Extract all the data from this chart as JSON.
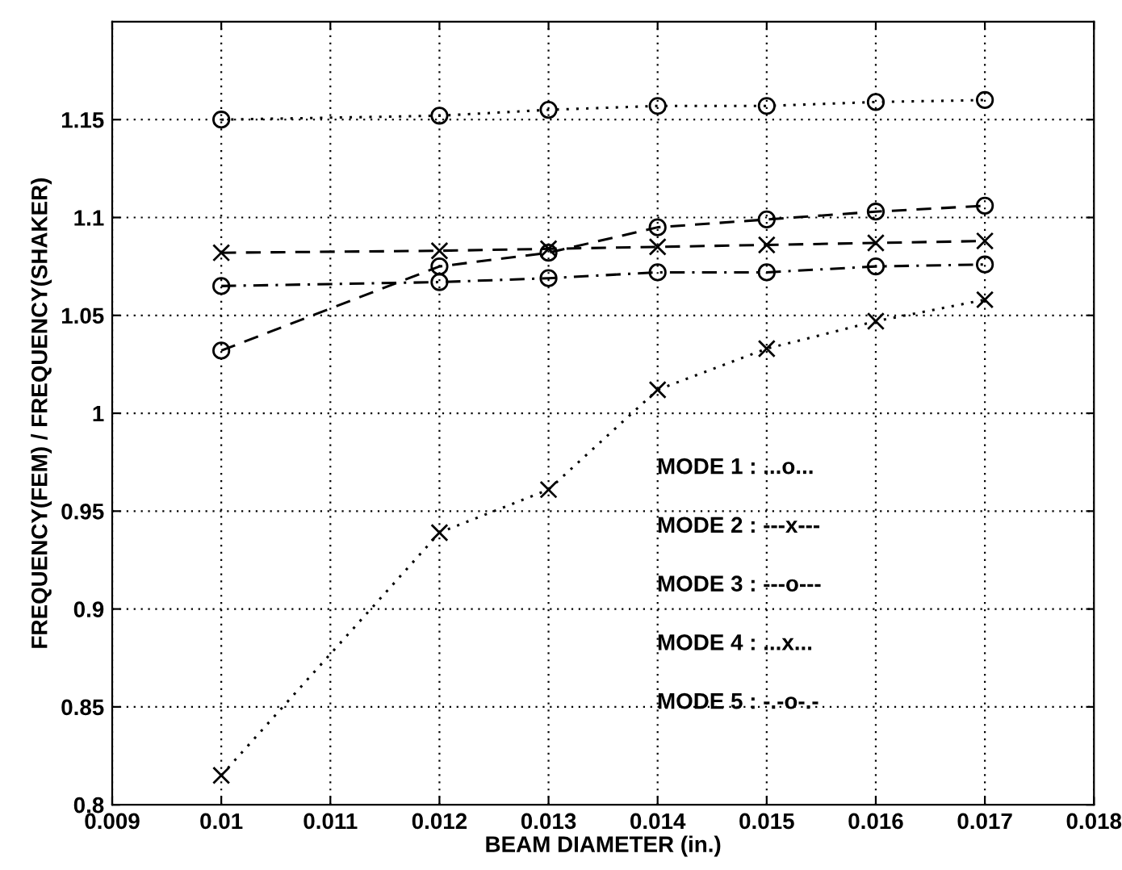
{
  "chart_data": {
    "type": "line",
    "xlabel": "BEAM DIAMETER (in.)",
    "ylabel": "FREQUENCY(FEM) / FREQUENCY(SHAKER)",
    "x": [
      0.01,
      0.012,
      0.013,
      0.014,
      0.015,
      0.016,
      0.017
    ],
    "series": [
      {
        "color": "#000000",
        "marker": "circle",
        "line_style": "dotted",
        "values": [
          1.15,
          1.152,
          1.155,
          1.157,
          1.157,
          1.159,
          1.16
        ]
      },
      {
        "color": "#000000",
        "marker": "cross",
        "line_style": "dashed",
        "values": [
          1.082,
          1.083,
          1.084,
          1.085,
          1.086,
          1.087,
          1.088
        ]
      },
      {
        "color": "#000000",
        "marker": "circle",
        "line_style": "dashed",
        "values": [
          1.032,
          1.075,
          1.082,
          1.095,
          1.099,
          1.103,
          1.106
        ]
      },
      {
        "color": "#000000",
        "marker": "cross",
        "line_style": "dotted",
        "values": [
          0.815,
          0.939,
          0.961,
          1.012,
          1.033,
          1.047,
          1.058
        ]
      },
      {
        "color": "#000000",
        "marker": "circle",
        "line_style": "dashdot",
        "values": [
          1.065,
          1.067,
          1.069,
          1.072,
          1.072,
          1.075,
          1.076
        ]
      }
    ],
    "xlim": [
      0.009,
      0.018
    ],
    "xticks": [
      0.009,
      0.01,
      0.011,
      0.012,
      0.013,
      0.014,
      0.015,
      0.016,
      0.017,
      0.018
    ],
    "ylim": [
      0.8,
      1.2
    ],
    "yticks": [
      0.8,
      0.85,
      0.9,
      0.95,
      1,
      1.05,
      1.1,
      1.15
    ],
    "grid": true,
    "annotations": [
      "MODE 1 : ...o...",
      "MODE 2 : ---x---",
      "MODE 3 : ---o---",
      "MODE 4 : ...x...",
      "MODE 5 : -.-o-.-"
    ]
  }
}
